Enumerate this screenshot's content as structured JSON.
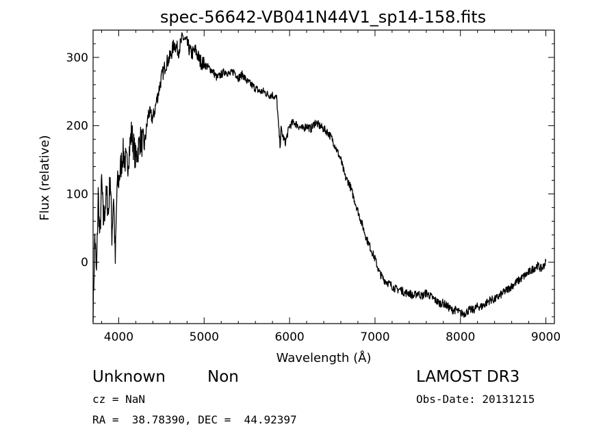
{
  "chart_data": {
    "type": "line",
    "title": "spec-56642-VB041N44V1_sp14-158.fits",
    "xlabel": "Wavelength (Å)",
    "ylabel": "Flux (relative)",
    "xlim": [
      3700,
      9100
    ],
    "ylim": [
      -90,
      340
    ],
    "x_ticks": [
      4000,
      5000,
      6000,
      7000,
      8000,
      9000
    ],
    "y_ticks": [
      0,
      100,
      200,
      300
    ],
    "grid": false,
    "legend": "none",
    "line_color": "#000000",
    "series": [
      {
        "x": [
          3700,
          3720,
          3740,
          3760,
          3780,
          3800,
          3820,
          3840,
          3860,
          3880,
          3900,
          3920,
          3940,
          3960,
          3980,
          4000,
          4050,
          4100,
          4150,
          4200,
          4250,
          4300,
          4350,
          4400,
          4450,
          4500,
          4550,
          4600,
          4650,
          4700,
          4750,
          4800,
          4850,
          4900,
          4950,
          5000,
          5050,
          5100,
          5150,
          5200,
          5250,
          5300,
          5350,
          5400,
          5450,
          5500,
          5550,
          5600,
          5650,
          5700,
          5750,
          5800,
          5850,
          5870,
          5890,
          5900,
          5920,
          5950,
          6000,
          6050,
          6100,
          6150,
          6200,
          6250,
          6300,
          6350,
          6400,
          6450,
          6500,
          6550,
          6600,
          6650,
          6700,
          6750,
          6800,
          6850,
          6900,
          6950,
          7000,
          7050,
          7100,
          7150,
          7200,
          7250,
          7300,
          7350,
          7400,
          7450,
          7500,
          7550,
          7600,
          7650,
          7700,
          7750,
          7800,
          7850,
          7900,
          7950,
          8000,
          8050,
          8100,
          8150,
          8200,
          8250,
          8300,
          8350,
          8400,
          8450,
          8500,
          8550,
          8600,
          8650,
          8700,
          8750,
          8800,
          8850,
          8900,
          8950,
          9000
        ],
        "values": [
          -80,
          40,
          -20,
          100,
          30,
          120,
          60,
          80,
          100,
          70,
          130,
          40,
          100,
          0,
          110,
          120,
          160,
          140,
          190,
          150,
          180,
          170,
          220,
          210,
          240,
          270,
          290,
          300,
          320,
          310,
          330,
          320,
          305,
          310,
          295,
          290,
          285,
          280,
          270,
          275,
          280,
          275,
          280,
          270,
          275,
          265,
          260,
          255,
          250,
          250,
          245,
          245,
          240,
          200,
          170,
          195,
          185,
          175,
          200,
          205,
          200,
          195,
          200,
          195,
          205,
          200,
          195,
          190,
          180,
          165,
          150,
          125,
          115,
          95,
          75,
          55,
          35,
          20,
          5,
          -15,
          -25,
          -30,
          -35,
          -40,
          -40,
          -45,
          -45,
          -50,
          -45,
          -50,
          -45,
          -50,
          -55,
          -60,
          -60,
          -65,
          -70,
          -70,
          -75,
          -75,
          -70,
          -70,
          -65,
          -65,
          -60,
          -55,
          -55,
          -50,
          -45,
          -40,
          -35,
          -30,
          -25,
          -20,
          -15,
          -10,
          -5,
          -10,
          0
        ]
      }
    ]
  },
  "info": {
    "class": "Unknown",
    "subclass": "Non",
    "survey": "LAMOST DR3",
    "cz": "cz = NaN",
    "obs_date": "Obs-Date: 20131215",
    "radec": "RA =  38.78390, DEC =  44.92397"
  }
}
